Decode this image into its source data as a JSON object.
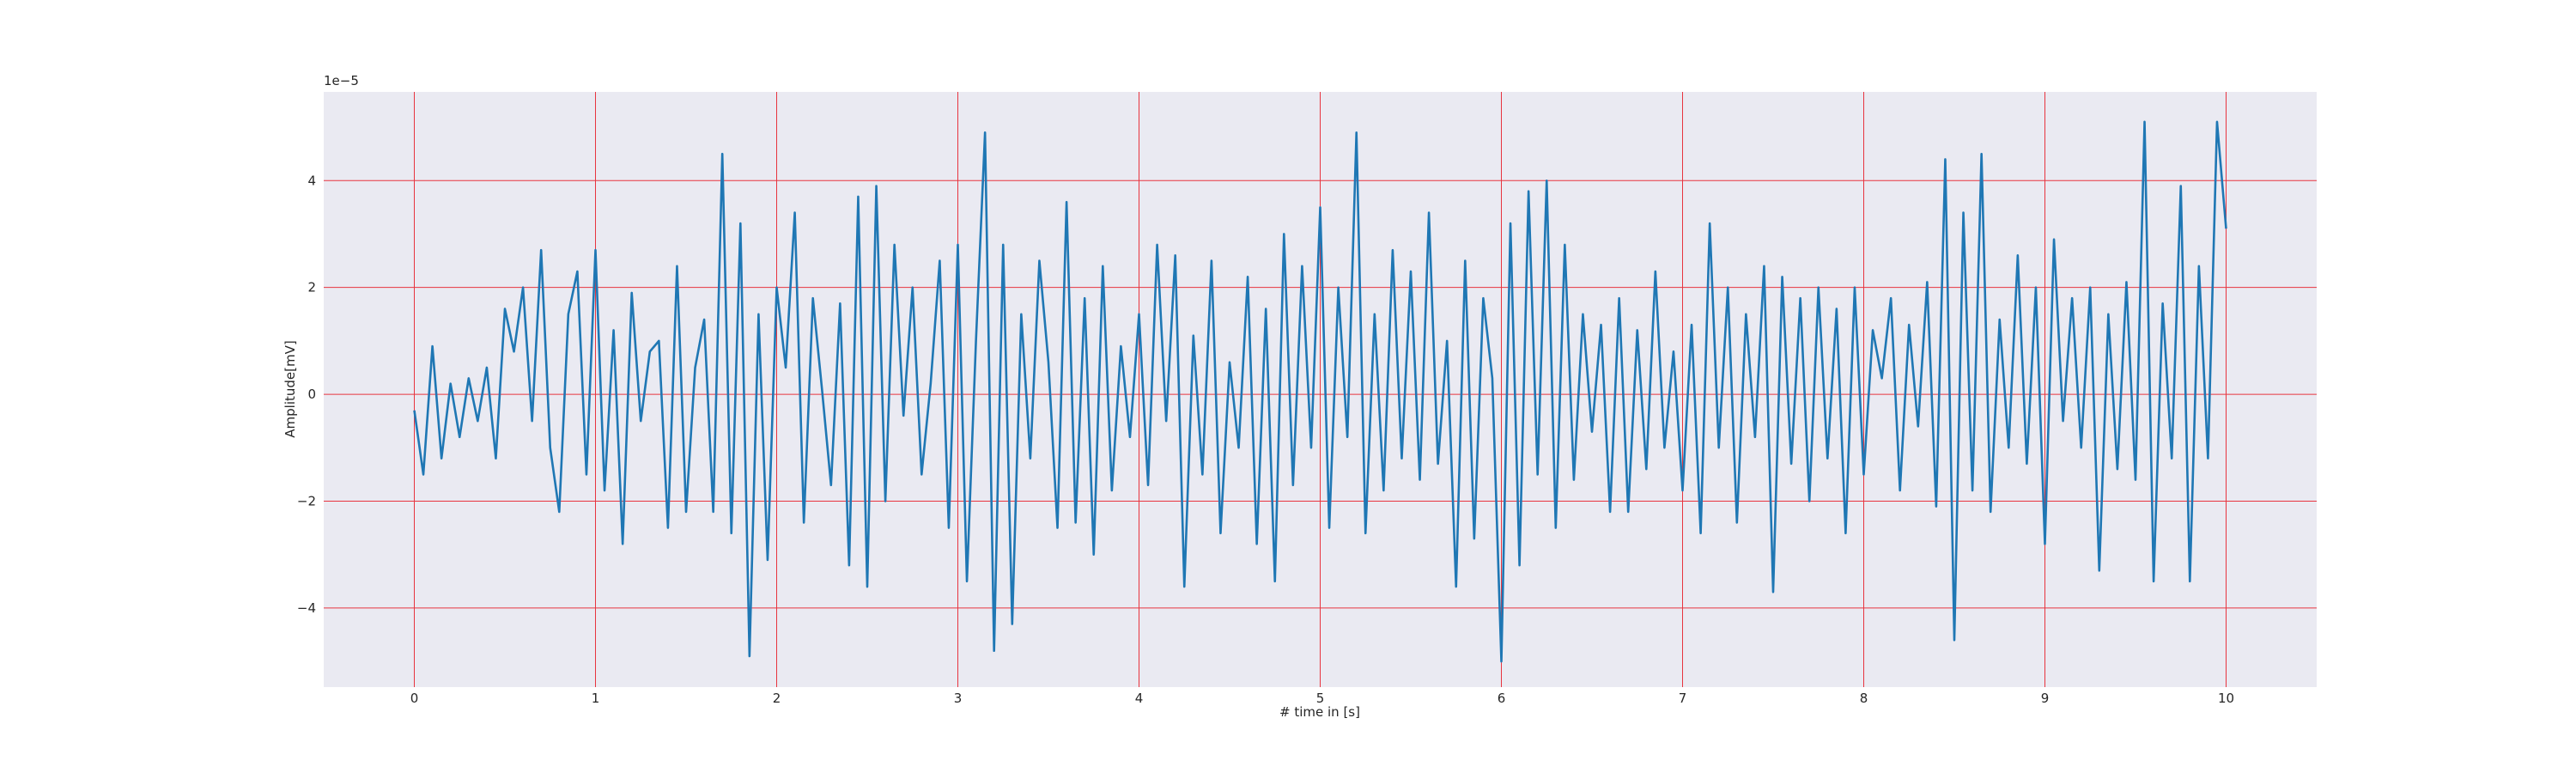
{
  "chart_data": {
    "type": "line",
    "xlabel": "# time in [s]",
    "ylabel": "Amplitude[mV]",
    "y_offset_text": "1e−5",
    "grid": true,
    "grid_color": "#e8343f",
    "background": "#eaeaf2",
    "xlim": [
      -0.5,
      10.5
    ],
    "ylim": [
      -5.48,
      5.66
    ],
    "xticks": [
      0,
      1,
      2,
      3,
      4,
      5,
      6,
      7,
      8,
      9,
      10
    ],
    "yticks": [
      {
        "value": -4,
        "label": "−4"
      },
      {
        "value": -2,
        "label": "−2"
      },
      0,
      2,
      4
    ],
    "x": [
      0,
      0.05,
      0.1,
      0.15,
      0.2,
      0.25,
      0.3,
      0.35,
      0.4,
      0.45,
      0.5,
      0.55,
      0.6,
      0.65,
      0.7,
      0.75,
      0.8,
      0.85,
      0.9,
      0.95,
      1,
      1.05,
      1.1,
      1.15,
      1.2,
      1.25,
      1.3,
      1.35,
      1.4,
      1.45,
      1.5,
      1.55,
      1.6,
      1.65,
      1.7,
      1.75,
      1.8,
      1.85,
      1.9,
      1.95,
      2,
      2.05,
      2.1,
      2.15,
      2.2,
      2.25,
      2.3,
      2.35,
      2.4,
      2.45,
      2.5,
      2.55,
      2.6,
      2.65,
      2.7,
      2.75,
      2.8,
      2.85,
      2.9,
      2.95,
      3,
      3.05,
      3.1,
      3.15,
      3.2,
      3.25,
      3.3,
      3.35,
      3.4,
      3.45,
      3.5,
      3.55,
      3.6,
      3.65,
      3.7,
      3.75,
      3.8,
      3.85,
      3.9,
      3.95,
      4,
      4.05,
      4.1,
      4.15,
      4.2,
      4.25,
      4.3,
      4.35,
      4.4,
      4.45,
      4.5,
      4.55,
      4.6,
      4.65,
      4.7,
      4.75,
      4.8,
      4.85,
      4.9,
      4.95,
      5,
      5.05,
      5.1,
      5.15,
      5.2,
      5.25,
      5.3,
      5.35,
      5.4,
      5.45,
      5.5,
      5.55,
      5.6,
      5.65,
      5.7,
      5.75,
      5.8,
      5.85,
      5.9,
      5.95,
      6,
      6.05,
      6.1,
      6.15,
      6.2,
      6.25,
      6.3,
      6.35,
      6.4,
      6.45,
      6.5,
      6.55,
      6.6,
      6.65,
      6.7,
      6.75,
      6.8,
      6.85,
      6.9,
      6.95,
      7,
      7.05,
      7.1,
      7.15,
      7.2,
      7.25,
      7.3,
      7.35,
      7.4,
      7.45,
      7.5,
      7.55,
      7.6,
      7.65,
      7.7,
      7.75,
      7.8,
      7.85,
      7.9,
      7.95,
      8,
      8.05,
      8.1,
      8.15,
      8.2,
      8.25,
      8.3,
      8.35,
      8.4,
      8.45,
      8.5,
      8.55,
      8.6,
      8.65,
      8.7,
      8.75,
      8.8,
      8.85,
      8.9,
      8.95,
      9,
      9.05,
      9.1,
      9.15,
      9.2,
      9.25,
      9.3,
      9.35,
      9.4,
      9.45,
      9.5,
      9.55,
      9.6,
      9.65,
      9.7,
      9.75,
      9.8,
      9.85,
      9.9,
      9.95,
      10
    ],
    "series": [
      {
        "color": "#1f77b4",
        "values": [
          -0.3,
          -1.5,
          0.9,
          -1.2,
          0.2,
          -0.8,
          0.3,
          -0.5,
          0.5,
          -1.2,
          1.6,
          0.8,
          2.0,
          -0.5,
          2.7,
          -1.0,
          -2.2,
          1.5,
          2.3,
          -1.5,
          2.7,
          -1.8,
          1.2,
          -2.8,
          1.9,
          -0.5,
          0.8,
          1.0,
          -2.5,
          2.4,
          -2.2,
          0.5,
          1.4,
          -2.2,
          4.5,
          -2.6,
          3.2,
          -4.9,
          1.5,
          -3.1,
          2.0,
          0.5,
          3.4,
          -2.4,
          1.8,
          0.1,
          -1.7,
          1.7,
          -3.2,
          3.7,
          -3.6,
          3.9,
          -2.0,
          2.8,
          -0.4,
          2.0,
          -1.5,
          0.2,
          2.5,
          -2.5,
          2.8,
          -3.5,
          1.0,
          4.9,
          -4.8,
          2.8,
          -4.3,
          1.5,
          -1.2,
          2.5,
          0.6,
          -2.5,
          3.6,
          -2.4,
          1.8,
          -3.0,
          2.4,
          -1.8,
          0.9,
          -0.8,
          1.5,
          -1.7,
          2.8,
          -0.5,
          2.6,
          -3.6,
          1.1,
          -1.5,
          2.5,
          -2.6,
          0.6,
          -1.0,
          2.2,
          -2.8,
          1.6,
          -3.5,
          3.0,
          -1.7,
          2.4,
          -1.0,
          3.5,
          -2.5,
          2.0,
          -0.8,
          4.9,
          -2.6,
          1.5,
          -1.8,
          2.7,
          -1.2,
          2.3,
          -1.6,
          3.4,
          -1.3,
          1.0,
          -3.6,
          2.5,
          -2.7,
          1.8,
          0.3,
          -5.0,
          3.2,
          -3.2,
          3.8,
          -1.5,
          4.0,
          -2.5,
          2.8,
          -1.6,
          1.5,
          -0.7,
          1.3,
          -2.2,
          1.8,
          -2.2,
          1.2,
          -1.4,
          2.3,
          -1.0,
          0.8,
          -1.8,
          1.3,
          -2.6,
          3.2,
          -1.0,
          2.0,
          -2.4,
          1.5,
          -0.8,
          2.4,
          -3.7,
          2.2,
          -1.3,
          1.8,
          -2.0,
          2.0,
          -1.2,
          1.6,
          -2.6,
          2.0,
          -1.5,
          1.2,
          0.3,
          1.8,
          -1.8,
          1.3,
          -0.6,
          2.1,
          -2.1,
          4.4,
          -4.6,
          3.4,
          -1.8,
          4.5,
          -2.2,
          1.4,
          -1.0,
          2.6,
          -1.3,
          2.0,
          -2.8,
          2.9,
          -0.5,
          1.8,
          -1.0,
          2.0,
          -3.3,
          1.5,
          -1.4,
          2.1,
          -1.6,
          5.1,
          -3.5,
          1.7,
          -1.2,
          3.9,
          -3.5,
          2.4,
          -1.2,
          5.1,
          3.1
        ]
      }
    ]
  }
}
